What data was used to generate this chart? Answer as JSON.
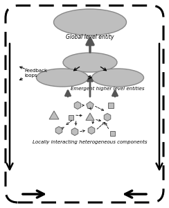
{
  "bg_color": "#ffffff",
  "gray_fill": "#bebebe",
  "dark_arrow": "#555555",
  "global_label": "Global level entity",
  "emergent_label": "Emergent higher level entities",
  "local_label": "Locally interacting heterogeneous components",
  "feedback_label": "Feedback\nloops"
}
